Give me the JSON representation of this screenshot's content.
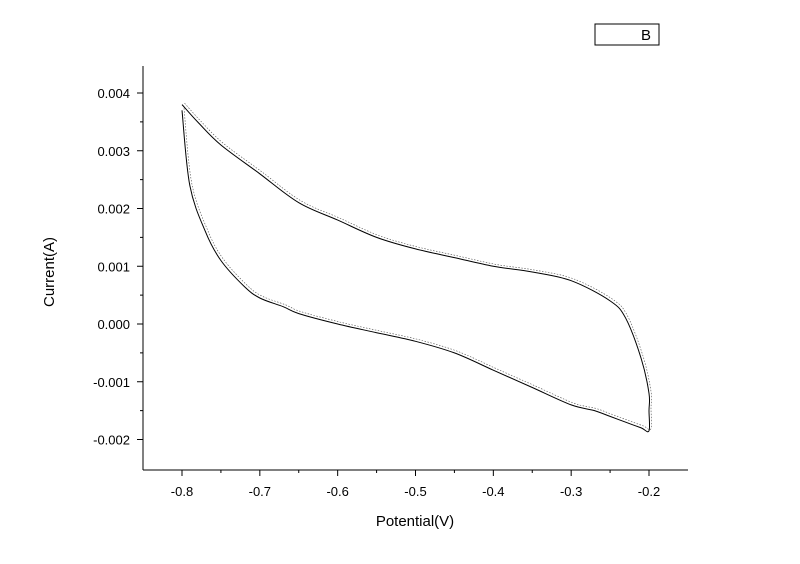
{
  "chart_data": {
    "type": "line",
    "xlabel": "Potential(V)",
    "ylabel": "Current(A)",
    "xlim": [
      -0.85,
      -0.15
    ],
    "ylim": [
      -0.0025,
      0.0043
    ],
    "x_ticks": [
      -0.8,
      -0.7,
      -0.6,
      -0.5,
      -0.4,
      -0.3,
      -0.2
    ],
    "x_tick_labels": [
      "-0.8",
      "-0.7",
      "-0.6",
      "-0.5",
      "-0.4",
      "-0.3",
      "-0.2"
    ],
    "y_ticks": [
      -0.002,
      -0.001,
      0.0,
      0.001,
      0.002,
      0.003,
      0.004
    ],
    "y_tick_labels": [
      "-0.002",
      "-0.001",
      "0.000",
      "0.001",
      "0.002",
      "0.003",
      "0.004"
    ],
    "grid": false,
    "legend_position": "top-right",
    "series": [
      {
        "name": "B",
        "color": "#000000",
        "x": [
          -0.8,
          -0.79,
          -0.77,
          -0.75,
          -0.72,
          -0.7,
          -0.67,
          -0.65,
          -0.6,
          -0.55,
          -0.5,
          -0.45,
          -0.4,
          -0.35,
          -0.3,
          -0.27,
          -0.25,
          -0.23,
          -0.21,
          -0.2,
          -0.2,
          -0.2,
          -0.21,
          -0.23,
          -0.25,
          -0.3,
          -0.35,
          -0.4,
          -0.45,
          -0.5,
          -0.55,
          -0.6,
          -0.65,
          -0.7,
          -0.75,
          -0.78,
          -0.8
        ],
        "y": [
          0.0037,
          0.0024,
          0.0016,
          0.0011,
          0.00065,
          0.00045,
          0.0003,
          0.00018,
          0.0,
          -0.00015,
          -0.0003,
          -0.0005,
          -0.0008,
          -0.0011,
          -0.0014,
          -0.0015,
          -0.0016,
          -0.0017,
          -0.0018,
          -0.00185,
          -0.0015,
          -0.0012,
          -0.0006,
          0.0001,
          0.0004,
          0.00075,
          0.0009,
          0.001,
          0.00115,
          0.0013,
          0.0015,
          0.0018,
          0.0021,
          0.0026,
          0.0031,
          0.0035,
          0.0038
        ]
      }
    ]
  }
}
